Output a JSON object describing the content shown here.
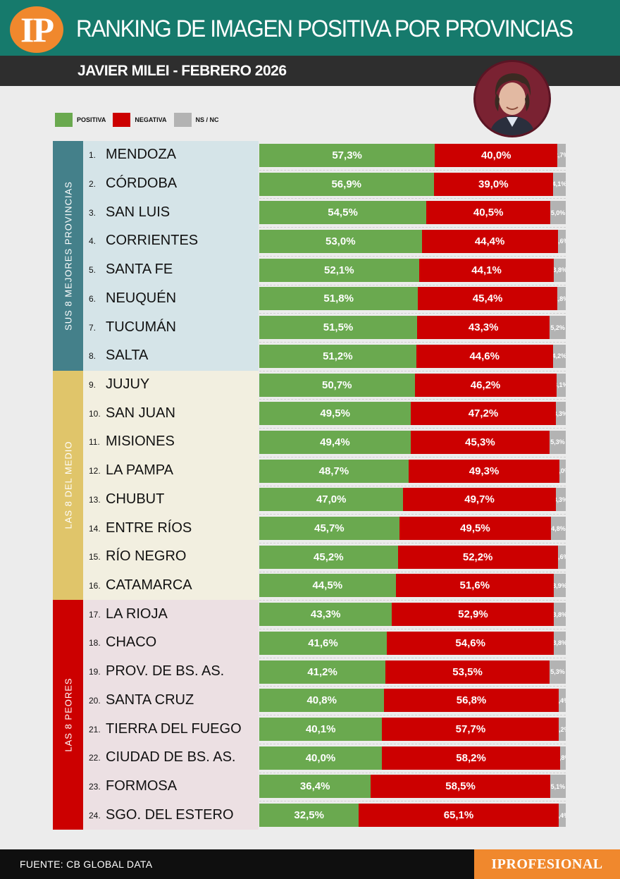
{
  "header": {
    "logo": "IP",
    "title": "RANKING DE IMAGEN POSITIVA POR PROVINCIAS",
    "subtitle": "JAVIER MILEI - FEBRERO 2026"
  },
  "colors": {
    "positiva": "#6aa94f",
    "negativa": "#cc0000",
    "nsnc": "#b3b3b3"
  },
  "legend": [
    {
      "key": "positiva",
      "label": "POSITIVA"
    },
    {
      "key": "negativa",
      "label": "NEGATIVA"
    },
    {
      "key": "nsnc",
      "label": "NS / NC"
    }
  ],
  "groups": [
    {
      "label": "SUS 8 MEJORES PROVINCIAS",
      "color": "#44808a",
      "band": "#d5e4e8"
    },
    {
      "label": "LAS 8 DEL MEDIO",
      "color": "#e0c56a",
      "band": "#f2efe0"
    },
    {
      "label": "LAS 8 PEORES",
      "color": "#cc0000",
      "band": "#ece0e3"
    }
  ],
  "chart_data": {
    "type": "bar",
    "orientation": "horizontal-stacked-100",
    "title": "RANKING DE IMAGEN POSITIVA POR PROVINCIAS",
    "subtitle": "JAVIER MILEI - FEBRERO 2026",
    "series": [
      "POSITIVA",
      "NEGATIVA",
      "NS / NC"
    ],
    "rows": [
      {
        "rank": "1.",
        "name": "MENDOZA",
        "pos": 57.3,
        "neg": 40.0,
        "ns": 2.7,
        "pos_label": "57,3%",
        "neg_label": "40,0%",
        "ns_label": "2,7%"
      },
      {
        "rank": "2.",
        "name": "CÓRDOBA",
        "pos": 56.9,
        "neg": 39.0,
        "ns": 4.1,
        "pos_label": "56,9%",
        "neg_label": "39,0%",
        "ns_label": "4,1%"
      },
      {
        "rank": "3.",
        "name": "SAN LUIS",
        "pos": 54.5,
        "neg": 40.5,
        "ns": 5.0,
        "pos_label": "54,5%",
        "neg_label": "40,5%",
        "ns_label": "5,0%"
      },
      {
        "rank": "4.",
        "name": "CORRIENTES",
        "pos": 53.0,
        "neg": 44.4,
        "ns": 2.6,
        "pos_label": "53,0%",
        "neg_label": "44,4%",
        "ns_label": "2,6%"
      },
      {
        "rank": "5.",
        "name": "SANTA FE",
        "pos": 52.1,
        "neg": 44.1,
        "ns": 3.8,
        "pos_label": "52,1%",
        "neg_label": "44,1%",
        "ns_label": "3,8%"
      },
      {
        "rank": "6.",
        "name": "NEUQUÉN",
        "pos": 51.8,
        "neg": 45.4,
        "ns": 2.8,
        "pos_label": "51,8%",
        "neg_label": "45,4%",
        "ns_label": "2,8%"
      },
      {
        "rank": "7.",
        "name": "TUCUMÁN",
        "pos": 51.5,
        "neg": 43.3,
        "ns": 5.2,
        "pos_label": "51,5%",
        "neg_label": "43,3%",
        "ns_label": "5,2%"
      },
      {
        "rank": "8.",
        "name": "SALTA",
        "pos": 51.2,
        "neg": 44.6,
        "ns": 4.2,
        "pos_label": "51,2%",
        "neg_label": "44,6%",
        "ns_label": "4,2%"
      },
      {
        "rank": "9.",
        "name": "JUJUY",
        "pos": 50.7,
        "neg": 46.2,
        "ns": 3.1,
        "pos_label": "50,7%",
        "neg_label": "46,2%",
        "ns_label": "3,1%"
      },
      {
        "rank": "10.",
        "name": "SAN JUAN",
        "pos": 49.5,
        "neg": 47.2,
        "ns": 3.3,
        "pos_label": "49,5%",
        "neg_label": "47,2%",
        "ns_label": "3,3%"
      },
      {
        "rank": "11.",
        "name": "MISIONES",
        "pos": 49.4,
        "neg": 45.3,
        "ns": 5.3,
        "pos_label": "49,4%",
        "neg_label": "45,3%",
        "ns_label": "5,3%"
      },
      {
        "rank": "12.",
        "name": "LA PAMPA",
        "pos": 48.7,
        "neg": 49.3,
        "ns": 2.0,
        "pos_label": "48,7%",
        "neg_label": "49,3%",
        "ns_label": "2,0%"
      },
      {
        "rank": "13.",
        "name": "CHUBUT",
        "pos": 47.0,
        "neg": 49.7,
        "ns": 3.3,
        "pos_label": "47,0%",
        "neg_label": "49,7%",
        "ns_label": "3,3%"
      },
      {
        "rank": "14.",
        "name": "ENTRE RÍOS",
        "pos": 45.7,
        "neg": 49.5,
        "ns": 4.8,
        "pos_label": "45,7%",
        "neg_label": "49,5%",
        "ns_label": "4,8%"
      },
      {
        "rank": "15.",
        "name": "RÍO NEGRO",
        "pos": 45.2,
        "neg": 52.2,
        "ns": 2.6,
        "pos_label": "45,2%",
        "neg_label": "52,2%",
        "ns_label": "2,6%"
      },
      {
        "rank": "16.",
        "name": "CATAMARCA",
        "pos": 44.5,
        "neg": 51.6,
        "ns": 3.9,
        "pos_label": "44,5%",
        "neg_label": "51,6%",
        "ns_label": "3,9%"
      },
      {
        "rank": "17.",
        "name": "LA RIOJA",
        "pos": 43.3,
        "neg": 52.9,
        "ns": 3.8,
        "pos_label": "43,3%",
        "neg_label": "52,9%",
        "ns_label": "3,8%"
      },
      {
        "rank": "18.",
        "name": "CHACO",
        "pos": 41.6,
        "neg": 54.6,
        "ns": 3.8,
        "pos_label": "41,6%",
        "neg_label": "54,6%",
        "ns_label": "3,8%"
      },
      {
        "rank": "19.",
        "name": "PROV. DE BS. AS.",
        "pos": 41.2,
        "neg": 53.5,
        "ns": 5.3,
        "pos_label": "41,2%",
        "neg_label": "53,5%",
        "ns_label": "5,3%"
      },
      {
        "rank": "20.",
        "name": "SANTA CRUZ",
        "pos": 40.8,
        "neg": 56.8,
        "ns": 2.4,
        "pos_label": "40,8%",
        "neg_label": "56,8%",
        "ns_label": "2,4%"
      },
      {
        "rank": "21.",
        "name": "TIERRA DEL FUEGO",
        "pos": 40.1,
        "neg": 57.7,
        "ns": 2.2,
        "pos_label": "40,1%",
        "neg_label": "57,7%",
        "ns_label": "2,2%"
      },
      {
        "rank": "22.",
        "name": "CIUDAD DE BS. AS.",
        "pos": 40.0,
        "neg": 58.2,
        "ns": 1.8,
        "pos_label": "40,0%",
        "neg_label": "58,2%",
        "ns_label": "1,8%"
      },
      {
        "rank": "23.",
        "name": "FORMOSA",
        "pos": 36.4,
        "neg": 58.5,
        "ns": 5.1,
        "pos_label": "36,4%",
        "neg_label": "58,5%",
        "ns_label": "5,1%"
      },
      {
        "rank": "24.",
        "name": "SGO. DEL ESTERO",
        "pos": 32.5,
        "neg": 65.1,
        "ns": 2.4,
        "pos_label": "32,5%",
        "neg_label": "65,1%",
        "ns_label": "2,4%"
      }
    ],
    "xlim": [
      0,
      100
    ]
  },
  "footer": {
    "source": "FUENTE: CB GLOBAL DATA",
    "brand": "IPROFESIONAL"
  }
}
